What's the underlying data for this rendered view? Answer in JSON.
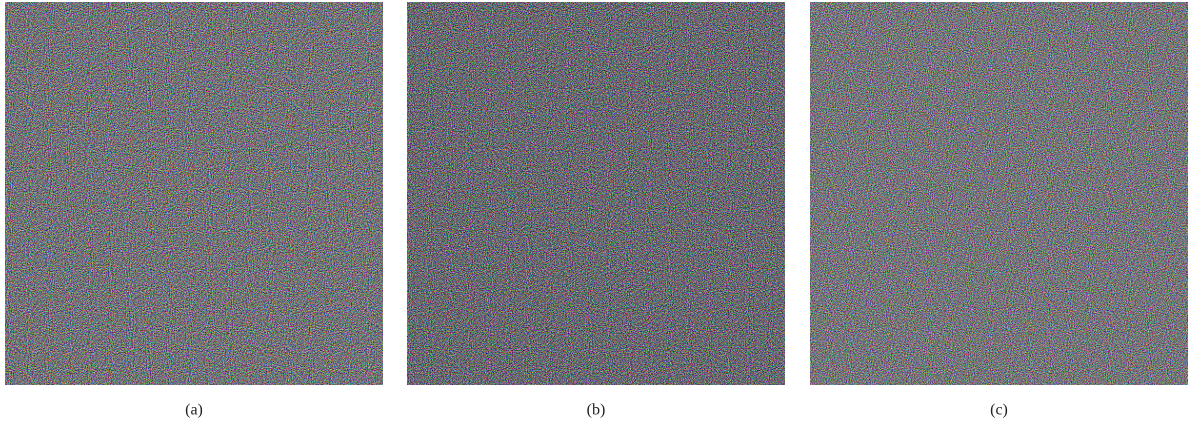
{
  "figure": {
    "panels": [
      {
        "caption": "(a)"
      },
      {
        "caption": "(b)"
      },
      {
        "caption": "(c)"
      }
    ]
  }
}
